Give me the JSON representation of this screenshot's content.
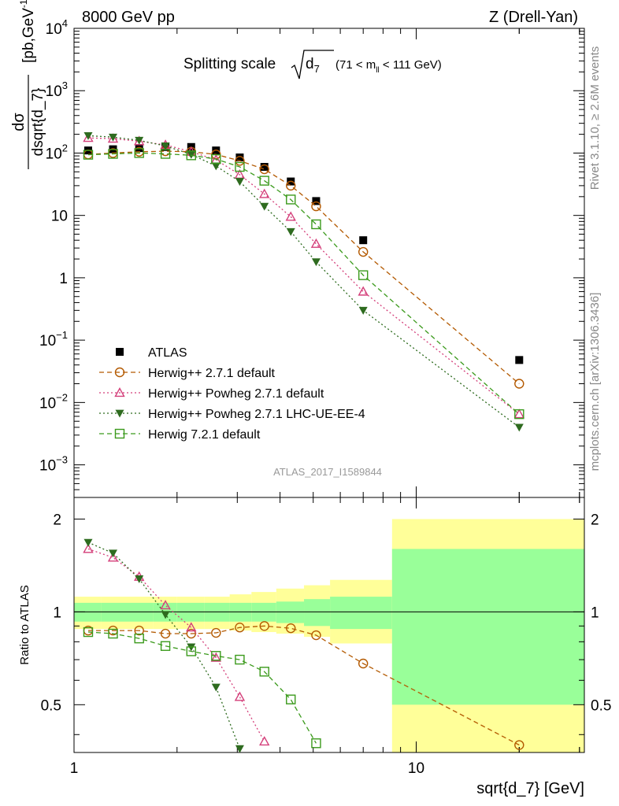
{
  "header": {
    "left": "8000 GeV pp",
    "right": "Z (Drell-Yan)"
  },
  "title": {
    "main": "Splitting scale",
    "sub": "(71 < m",
    "sub_index": "ll",
    "sub_end": " < 111 GeV)"
  },
  "side_labels": {
    "rivet": "Rivet 3.1.10, ≥ 2.6M events",
    "mcplots": "mcplots.cern.ch [arXiv:1306.3436]"
  },
  "watermark": "ATLAS_2017_I1589844",
  "y_label_top": {
    "numerator": "dσ",
    "denominator": "dsqrt{d_7}",
    "units": "[pb,GeV",
    "units_exp": "-1",
    "units_end": "]"
  },
  "y_label_bottom": "Ratio to ATLAS",
  "x_label": "sqrt{d_7} [GeV]",
  "legend": [
    {
      "label": "ATLAS",
      "color": "#000000",
      "marker": "square-filled",
      "line": "none"
    },
    {
      "label": "Herwig++ 2.7.1 default",
      "color": "#b35900",
      "marker": "circle-open",
      "line": "dashed"
    },
    {
      "label": "Herwig++ Powheg 2.7.1 default",
      "color": "#d43f7a",
      "marker": "triangle-open",
      "line": "dotted"
    },
    {
      "label": "Herwig++ Powheg 2.7.1 LHC-UE-EE-4",
      "color": "#2e6b1f",
      "marker": "triangle-down-filled",
      "line": "dotted"
    },
    {
      "label": "Herwig 7.2.1 default",
      "color": "#3b9a1c",
      "marker": "square-open",
      "line": "dashed"
    }
  ],
  "chart_data": [
    {
      "type": "scatter",
      "panel": "main",
      "x_scale": "log",
      "y_scale": "log",
      "xlim": [
        1,
        31
      ],
      "ylim": [
        0.0003,
        10000
      ],
      "y_ticks": [
        "10^-3",
        "10^-2",
        "10^-1",
        "1",
        "10",
        "10^2",
        "10^3",
        "10^4"
      ],
      "x_ticks": [
        "1",
        "10"
      ],
      "x": [
        1.1,
        1.3,
        1.55,
        1.85,
        2.2,
        2.6,
        3.05,
        3.6,
        4.3,
        5.1,
        7.0,
        20.0
      ],
      "series": [
        {
          "name": "ATLAS",
          "values": [
            110,
            115,
            120,
            125,
            125,
            110,
            85,
            60,
            35,
            17,
            4.0,
            0.048
          ]
        },
        {
          "name": "Herwig++ 2.7.1 default",
          "values": [
            95,
            100,
            105,
            107,
            105,
            95,
            75,
            55,
            30,
            14,
            2.6,
            0.02
          ]
        },
        {
          "name": "Herwig++ Powheg 2.7.1 default",
          "values": [
            175,
            170,
            155,
            135,
            105,
            78,
            45,
            22,
            9.5,
            3.5,
            0.6,
            0.0065
          ]
        },
        {
          "name": "Herwig++ Powheg 2.7.1 LHC-UE-EE-4",
          "values": [
            190,
            180,
            160,
            130,
            95,
            62,
            35,
            14,
            5.5,
            1.8,
            0.3,
            0.004
          ]
        },
        {
          "name": "Herwig 7.2.1 default",
          "values": [
            94,
            97,
            100,
            97,
            92,
            80,
            60,
            36,
            18,
            7.2,
            1.1,
            0.0065
          ]
        }
      ]
    },
    {
      "type": "scatter",
      "panel": "ratio",
      "x_scale": "log",
      "y_scale": "log",
      "xlim": [
        1,
        31
      ],
      "ylim": [
        0.35,
        2.35
      ],
      "y_ticks": [
        "0.5",
        "1",
        "2"
      ],
      "x_ticks": [
        "1",
        "10"
      ],
      "x": [
        1.1,
        1.3,
        1.55,
        1.85,
        2.2,
        2.6,
        3.05,
        3.6,
        4.3,
        5.1,
        7.0,
        20.0
      ],
      "band_edges": [
        1.0,
        1.2,
        1.4,
        1.7,
        2.0,
        2.4,
        2.85,
        3.3,
        3.9,
        4.7,
        5.6,
        8.5,
        31
      ],
      "band_green": [
        [
          0.93,
          1.07
        ],
        [
          0.93,
          1.07
        ],
        [
          0.93,
          1.07
        ],
        [
          0.93,
          1.07
        ],
        [
          0.93,
          1.07
        ],
        [
          0.93,
          1.07
        ],
        [
          0.93,
          1.07
        ],
        [
          0.93,
          1.07
        ],
        [
          0.92,
          1.08
        ],
        [
          0.9,
          1.1
        ],
        [
          0.88,
          1.12
        ],
        [
          0.5,
          1.6
        ]
      ],
      "band_yellow": [
        [
          0.88,
          1.12
        ],
        [
          0.88,
          1.12
        ],
        [
          0.88,
          1.12
        ],
        [
          0.88,
          1.12
        ],
        [
          0.88,
          1.12
        ],
        [
          0.88,
          1.12
        ],
        [
          0.87,
          1.14
        ],
        [
          0.86,
          1.16
        ],
        [
          0.85,
          1.19
        ],
        [
          0.83,
          1.22
        ],
        [
          0.79,
          1.27
        ],
        [
          0.3,
          2.0
        ]
      ],
      "series": [
        {
          "name": "Herwig++ 2.7.1 default",
          "values": [
            0.87,
            0.87,
            0.87,
            0.85,
            0.85,
            0.855,
            0.89,
            0.9,
            0.885,
            0.84,
            0.68,
            0.37
          ]
        },
        {
          "name": "Herwig++ Powheg 2.7.1 default",
          "values": [
            1.6,
            1.5,
            1.3,
            1.05,
            0.89,
            0.71,
            0.53,
            0.38
          ]
        },
        {
          "name": "Herwig++ Powheg 2.7.1 LHC-UE-EE-4",
          "values": [
            1.68,
            1.55,
            1.28,
            0.98,
            0.77,
            0.57,
            0.36
          ]
        },
        {
          "name": "Herwig 7.2.1 default",
          "values": [
            0.86,
            0.85,
            0.82,
            0.775,
            0.745,
            0.72,
            0.7,
            0.64,
            0.52,
            0.375
          ]
        }
      ]
    }
  ]
}
